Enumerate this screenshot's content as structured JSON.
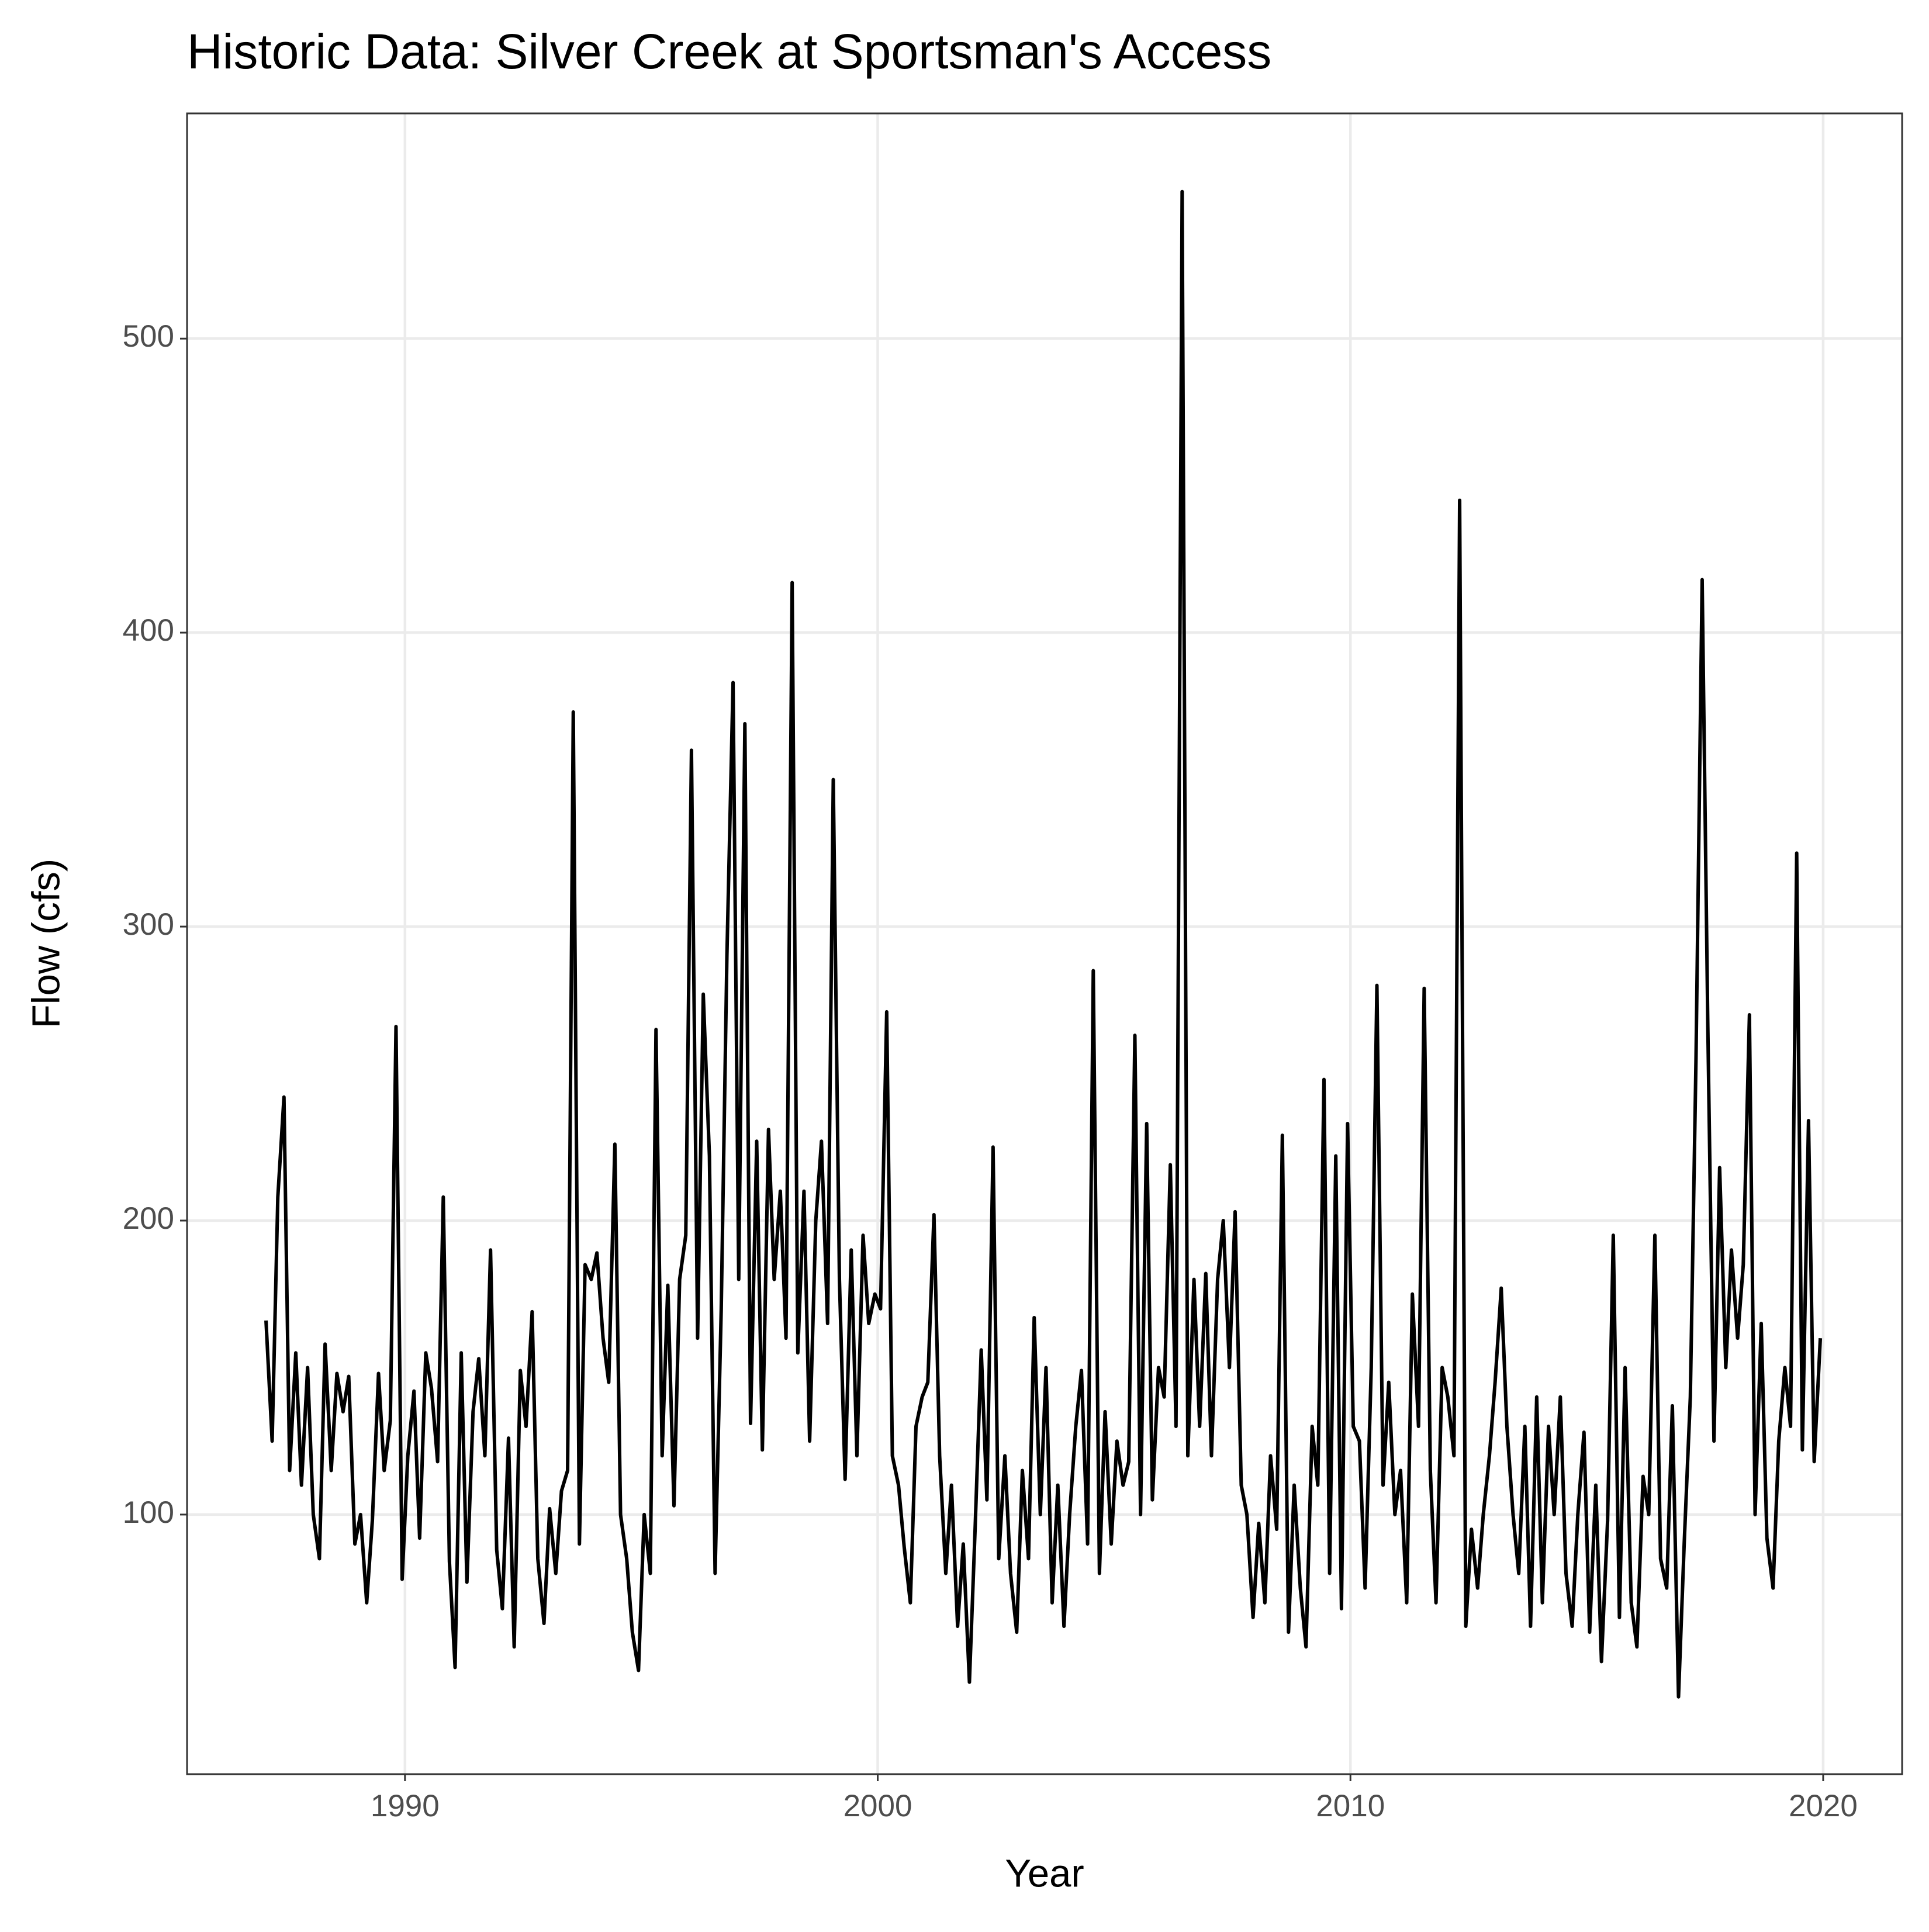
{
  "chart_data": {
    "type": "line",
    "title": "Historic Data: Silver Creek at Sportsman's Access",
    "xlabel": "Year",
    "ylabel": "Flow (cfs)",
    "color": "#000000",
    "grid": true,
    "xlim": [
      1985.39,
      2021.67
    ],
    "xticks": [
      1990,
      2000,
      2010,
      2020
    ],
    "ylim": [
      11.7,
      576.6
    ],
    "yticks": [
      100,
      200,
      300,
      400,
      500
    ],
    "x": [
      1987.06,
      1987.19,
      1987.31,
      1987.44,
      1987.56,
      1987.69,
      1987.81,
      1987.94,
      1988.06,
      1988.19,
      1988.31,
      1988.44,
      1988.56,
      1988.69,
      1988.81,
      1988.94,
      1989.06,
      1989.19,
      1989.31,
      1989.44,
      1989.56,
      1989.69,
      1989.81,
      1989.94,
      1990.06,
      1990.19,
      1990.31,
      1990.44,
      1990.56,
      1990.69,
      1990.81,
      1990.94,
      1991.06,
      1991.19,
      1991.31,
      1991.44,
      1991.56,
      1991.69,
      1991.81,
      1991.94,
      1992.06,
      1992.19,
      1992.31,
      1992.44,
      1992.56,
      1992.69,
      1992.81,
      1992.94,
      1993.06,
      1993.19,
      1993.31,
      1993.44,
      1993.56,
      1993.69,
      1993.81,
      1993.94,
      1994.06,
      1994.19,
      1994.31,
      1994.44,
      1994.56,
      1994.69,
      1994.81,
      1994.94,
      1995.06,
      1995.19,
      1995.31,
      1995.44,
      1995.56,
      1995.69,
      1995.81,
      1995.94,
      1996.06,
      1996.19,
      1996.31,
      1996.44,
      1996.56,
      1996.69,
      1996.81,
      1996.94,
      1997.06,
      1997.19,
      1997.31,
      1997.44,
      1997.56,
      1997.69,
      1997.81,
      1997.94,
      1998.06,
      1998.19,
      1998.31,
      1998.44,
      1998.56,
      1998.69,
      1998.81,
      1998.94,
      1999.06,
      1999.19,
      1999.31,
      1999.44,
      1999.56,
      1999.69,
      1999.81,
      1999.94,
      2000.06,
      2000.19,
      2000.31,
      2000.44,
      2000.56,
      2000.69,
      2000.81,
      2000.94,
      2001.06,
      2001.19,
      2001.31,
      2001.44,
      2001.56,
      2001.69,
      2001.81,
      2001.94,
      2002.06,
      2002.19,
      2002.31,
      2002.44,
      2002.56,
      2002.69,
      2002.81,
      2002.94,
      2003.06,
      2003.19,
      2003.31,
      2003.44,
      2003.56,
      2003.69,
      2003.81,
      2003.94,
      2004.06,
      2004.19,
      2004.31,
      2004.44,
      2004.56,
      2004.69,
      2004.81,
      2004.94,
      2005.06,
      2005.19,
      2005.31,
      2005.44,
      2005.56,
      2005.69,
      2005.81,
      2005.94,
      2006.06,
      2006.19,
      2006.31,
      2006.44,
      2006.56,
      2006.69,
      2006.81,
      2006.94,
      2007.06,
      2007.19,
      2007.31,
      2007.44,
      2007.56,
      2007.69,
      2007.81,
      2007.94,
      2008.06,
      2008.19,
      2008.31,
      2008.44,
      2008.56,
      2008.69,
      2008.81,
      2008.94,
      2009.06,
      2009.19,
      2009.31,
      2009.44,
      2009.56,
      2009.69,
      2009.81,
      2009.94,
      2010.06,
      2010.19,
      2010.31,
      2010.44,
      2010.56,
      2010.69,
      2010.81,
      2010.94,
      2011.06,
      2011.19,
      2011.31,
      2011.44,
      2011.56,
      2011.69,
      2011.81,
      2011.94,
      2012.06,
      2012.19,
      2012.31,
      2012.44,
      2012.56,
      2012.69,
      2012.81,
      2012.94,
      2013.06,
      2013.19,
      2013.31,
      2013.44,
      2013.56,
      2013.69,
      2013.81,
      2013.94,
      2014.06,
      2014.19,
      2014.31,
      2014.44,
      2014.56,
      2014.69,
      2014.81,
      2014.94,
      2015.06,
      2015.19,
      2015.31,
      2015.44,
      2015.56,
      2015.69,
      2015.81,
      2015.94,
      2016.06,
      2016.19,
      2016.31,
      2016.44,
      2016.56,
      2016.69,
      2016.81,
      2016.94,
      2017.06,
      2017.19,
      2017.31,
      2017.44,
      2017.56,
      2017.69,
      2017.81,
      2017.94,
      2018.06,
      2018.19,
      2018.31,
      2018.44,
      2018.56,
      2018.69,
      2018.81,
      2018.94,
      2019.06,
      2019.19,
      2019.31,
      2019.44,
      2019.56,
      2019.69,
      2019.81,
      2019.94
    ],
    "values": [
      166,
      125,
      208,
      242,
      115,
      155,
      110,
      150,
      100,
      85,
      158,
      115,
      148,
      135,
      147,
      90,
      100,
      70,
      98,
      148,
      115,
      132,
      266,
      78,
      120,
      142,
      92,
      155,
      143,
      118,
      208,
      84,
      48,
      155,
      77,
      135,
      153,
      120,
      190,
      88,
      68,
      126,
      55,
      149,
      130,
      169,
      85,
      63,
      102,
      80,
      108,
      115,
      373,
      90,
      185,
      180,
      189,
      160,
      145,
      226,
      100,
      85,
      60,
      47,
      100,
      80,
      265,
      120,
      178,
      103,
      180,
      195,
      360,
      160,
      277,
      222,
      80,
      170,
      290,
      383,
      180,
      369,
      131,
      227,
      122,
      231,
      180,
      210,
      160,
      417,
      155,
      210,
      125,
      200,
      227,
      165,
      350,
      180,
      112,
      190,
      120,
      195,
      165,
      175,
      170,
      271,
      120,
      110,
      89,
      70,
      130,
      140,
      145,
      202,
      120,
      80,
      110,
      62,
      90,
      43,
      95,
      156,
      105,
      225,
      85,
      120,
      80,
      60,
      115,
      85,
      167,
      100,
      150,
      70,
      110,
      62,
      100,
      130,
      149,
      90,
      285,
      80,
      135,
      90,
      125,
      110,
      118,
      263,
      100,
      233,
      105,
      150,
      140,
      219,
      130,
      550,
      120,
      180,
      130,
      182,
      120,
      180,
      200,
      150,
      203,
      110,
      100,
      65,
      97,
      70,
      120,
      95,
      229,
      60,
      110,
      75,
      55,
      130,
      110,
      248,
      80,
      222,
      68,
      233,
      130,
      125,
      75,
      150,
      280,
      110,
      145,
      100,
      115,
      70,
      175,
      130,
      279,
      115,
      70,
      150,
      140,
      120,
      445,
      62,
      95,
      75,
      100,
      120,
      145,
      177,
      130,
      100,
      80,
      130,
      62,
      140,
      70,
      130,
      100,
      140,
      80,
      62,
      100,
      128,
      60,
      110,
      50,
      98,
      195,
      65,
      150,
      70,
      55,
      113,
      100,
      195,
      85,
      75,
      137,
      38,
      90,
      140,
      255,
      418,
      266,
      125,
      218,
      150,
      190,
      160,
      185,
      270,
      100,
      165,
      92,
      75,
      125,
      150,
      130,
      325,
      122,
      234,
      118,
      160
    ]
  }
}
